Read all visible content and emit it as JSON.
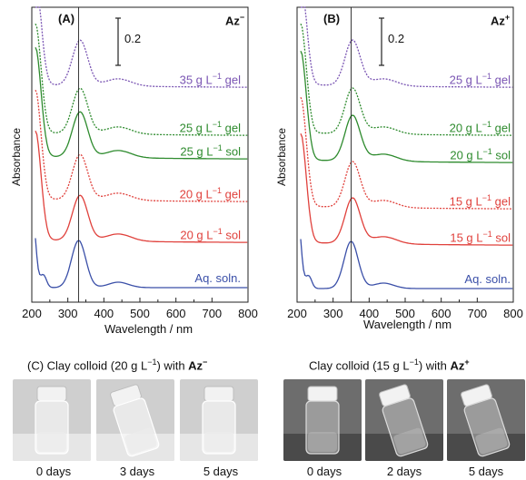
{
  "y_axis_label": "Absorbance",
  "panels": [
    {
      "id": "A",
      "letter": "(A)",
      "compound": "Az",
      "charge": "−",
      "scalebar": "0.2",
      "xlabel": "Wavelength / nm",
      "xticks": [
        "200",
        "300",
        "400",
        "500",
        "600",
        "700",
        "800"
      ],
      "marker_nm": 330,
      "traces": [
        {
          "label": "35 g L",
          "unit_exp": "−1",
          "state": " gel",
          "color": "#7a55b3",
          "dashed": true
        },
        {
          "label": "25 g L",
          "unit_exp": "−1",
          "state": " gel",
          "color": "#2e8b2e",
          "dashed": true
        },
        {
          "label": "25 g L",
          "unit_exp": "−1",
          "state": " sol",
          "color": "#2e8b2e",
          "dashed": false
        },
        {
          "label": "20 g L",
          "unit_exp": "−1",
          "state": " gel",
          "color": "#e0413c",
          "dashed": true
        },
        {
          "label": "20 g L",
          "unit_exp": "−1",
          "state": " sol",
          "color": "#e0413c",
          "dashed": false
        },
        {
          "label": "Aq. soln.",
          "unit_exp": "",
          "state": "",
          "color": "#3a4fa8",
          "dashed": false
        }
      ]
    },
    {
      "id": "B",
      "letter": "(B)",
      "compound": "Az",
      "charge": "+",
      "scalebar": "0.2",
      "xlabel": "Wavelength / nm",
      "xticks": [
        "200",
        "300",
        "400",
        "500",
        "600",
        "700",
        "800"
      ],
      "marker_nm": 350,
      "traces": [
        {
          "label": "25 g L",
          "unit_exp": "−1",
          "state": " gel",
          "color": "#7a55b3",
          "dashed": true
        },
        {
          "label": "20 g L",
          "unit_exp": "−1",
          "state": " gel",
          "color": "#2e8b2e",
          "dashed": true
        },
        {
          "label": "20 g L",
          "unit_exp": "−1",
          "state": " sol",
          "color": "#2e8b2e",
          "dashed": false
        },
        {
          "label": "15 g L",
          "unit_exp": "−1",
          "state": " gel",
          "color": "#e0413c",
          "dashed": true
        },
        {
          "label": "15 g L",
          "unit_exp": "−1",
          "state": " sol",
          "color": "#e0413c",
          "dashed": false
        },
        {
          "label": "Aq. soln.",
          "unit_exp": "",
          "state": "",
          "color": "#3a4fa8",
          "dashed": false
        }
      ]
    }
  ],
  "photos": [
    {
      "caption_prefix": "(C)  Clay colloid (20 g L",
      "caption_exp": "−1",
      "caption_suffix": ") with ",
      "compound": "Az",
      "charge": "−",
      "days": [
        "0 days",
        "3 days",
        "5 days"
      ],
      "tone": "light"
    },
    {
      "caption_prefix": "Clay colloid (15 g L",
      "caption_exp": "−1",
      "caption_suffix": ") with ",
      "compound": "Az",
      "charge": "+",
      "days": [
        "0 days",
        "2 days",
        "5 days"
      ],
      "tone": "dark"
    }
  ]
}
